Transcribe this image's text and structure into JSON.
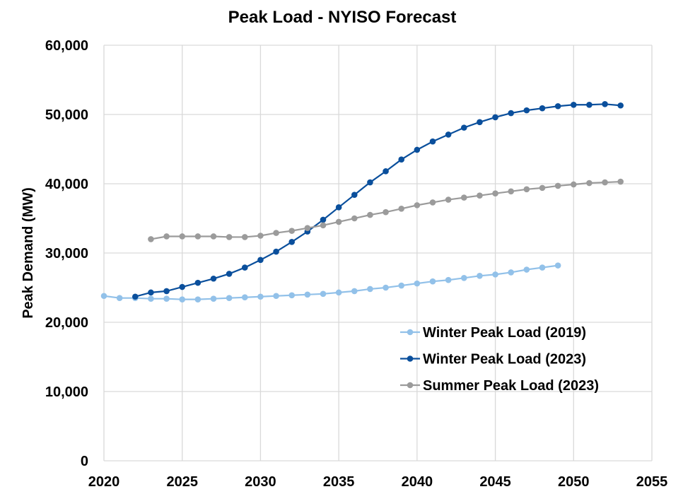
{
  "chart_data": {
    "type": "line",
    "title": "Peak Load - NYISO Forecast",
    "xlabel": "",
    "ylabel": "Peak Demand (MW)",
    "xlim": [
      2020,
      2055
    ],
    "ylim": [
      0,
      60000
    ],
    "x_ticks": [
      "2020",
      "2025",
      "2030",
      "2035",
      "2040",
      "2045",
      "2050",
      "2055"
    ],
    "y_ticks": [
      "0",
      "10,000",
      "20,000",
      "30,000",
      "40,000",
      "50,000",
      "60,000"
    ],
    "grid": true,
    "legend_position": "bottom-right",
    "series": [
      {
        "name": "Winter Peak Load (2019)",
        "color": "#92c1e9",
        "x_start": 2020,
        "values": [
          23800,
          23500,
          23500,
          23400,
          23400,
          23300,
          23300,
          23400,
          23500,
          23600,
          23700,
          23800,
          23900,
          24000,
          24100,
          24300,
          24500,
          24800,
          25000,
          25300,
          25600,
          25900,
          26100,
          26400,
          26700,
          26900,
          27200,
          27600,
          27900,
          28200
        ]
      },
      {
        "name": "Winter Peak Load (2023)",
        "color": "#0a4f9c",
        "x_start": 2022,
        "values": [
          23700,
          24300,
          24500,
          25100,
          25700,
          26300,
          27000,
          27900,
          29000,
          30200,
          31600,
          33100,
          34800,
          36600,
          38400,
          40200,
          41800,
          43500,
          44900,
          46100,
          47100,
          48100,
          48900,
          49600,
          50200,
          50600,
          50900,
          51200,
          51400,
          51400,
          51500,
          51300
        ]
      },
      {
        "name": "Summer Peak Load (2023)",
        "color": "#9b9b9b",
        "x_start": 2023,
        "values": [
          32000,
          32400,
          32400,
          32400,
          32400,
          32300,
          32300,
          32500,
          32900,
          33200,
          33600,
          34000,
          34500,
          35000,
          35500,
          35900,
          36400,
          36900,
          37300,
          37700,
          38000,
          38300,
          38600,
          38900,
          39200,
          39400,
          39700,
          39900,
          40100,
          40200,
          40300
        ]
      }
    ]
  }
}
